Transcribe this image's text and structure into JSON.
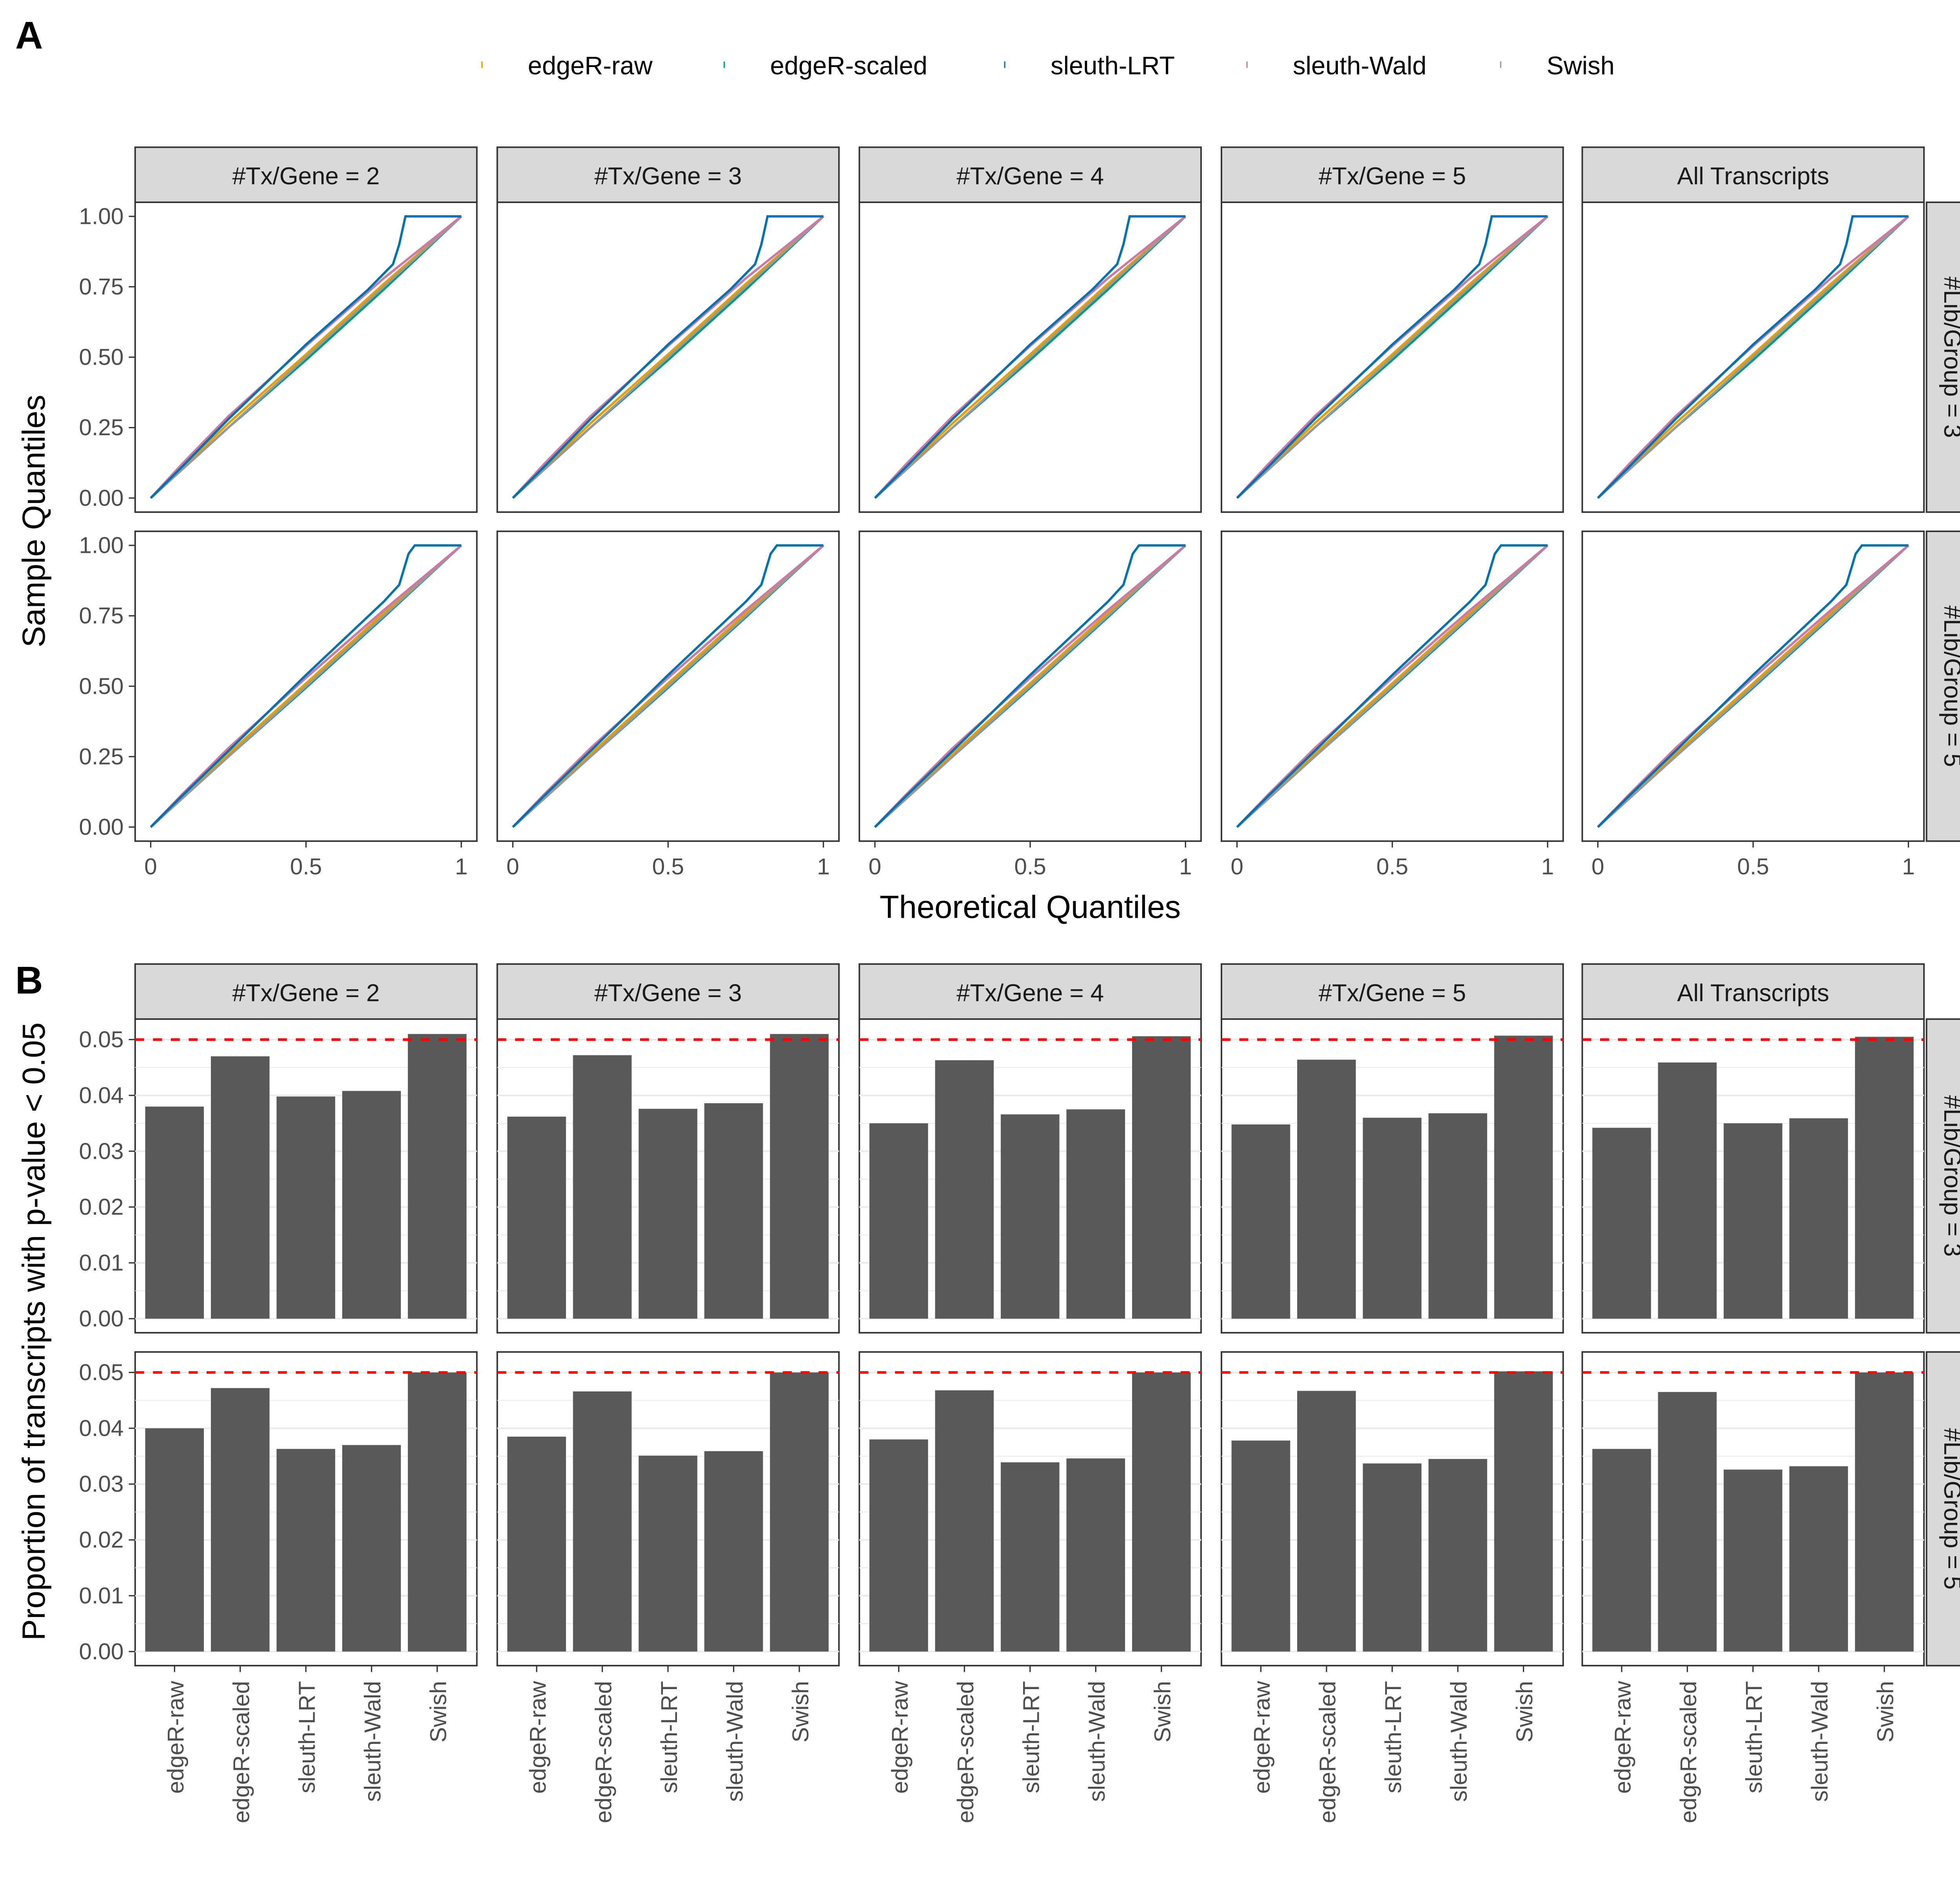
{
  "panel_labels": {
    "a": "A",
    "b": "B"
  },
  "legend": {
    "placement": "top",
    "entries": [
      {
        "name": "edgeR-raw",
        "color": "#E69F00"
      },
      {
        "name": "edgeR-scaled",
        "color": "#009E73"
      },
      {
        "name": "sleuth-LRT",
        "color": "#0072B2"
      },
      {
        "name": "sleuth-Wald",
        "color": "#CC79A7"
      },
      {
        "name": "Swish",
        "color": "#999999"
      }
    ]
  },
  "chart_data": [
    {
      "type": "line",
      "title": "",
      "xlabel": "Theoretical Quantiles",
      "ylabel": "Sample Quantiles",
      "xlim": [
        0,
        1
      ],
      "ylim": [
        0,
        1
      ],
      "xticks": [
        "0",
        "0.5",
        "1"
      ],
      "yticks": [
        "0.00",
        "0.25",
        "0.50",
        "0.75",
        "1.00"
      ],
      "grid": false,
      "col_facets": [
        "#Tx/Gene = 2",
        "#Tx/Gene = 3",
        "#Tx/Gene = 4",
        "#Tx/Gene = 5",
        "All Transcripts"
      ],
      "row_facets": [
        "#Lib/Group = 3",
        "#Lib/Group = 5"
      ],
      "rows": [
        {
          "series": [
            {
              "name": "edgeR-raw",
              "points": [
                [
                  0,
                  0
                ],
                [
                  0.25,
                  0.265
                ],
                [
                  0.5,
                  0.51
                ],
                [
                  0.75,
                  0.76
                ],
                [
                  1,
                  1
                ]
              ]
            },
            {
              "name": "edgeR-scaled",
              "points": [
                [
                  0,
                  0
                ],
                [
                  0.25,
                  0.25
                ],
                [
                  0.5,
                  0.49
                ],
                [
                  0.75,
                  0.74
                ],
                [
                  1,
                  1
                ]
              ]
            },
            {
              "name": "Swish",
              "points": [
                [
                  0,
                  0
                ],
                [
                  0.25,
                  0.25
                ],
                [
                  0.5,
                  0.5
                ],
                [
                  0.75,
                  0.75
                ],
                [
                  1,
                  1
                ]
              ]
            },
            {
              "name": "sleuth-Wald",
              "points": [
                [
                  0,
                  0
                ],
                [
                  0.1,
                  0.12
                ],
                [
                  0.25,
                  0.29
                ],
                [
                  0.5,
                  0.54
                ],
                [
                  0.75,
                  0.78
                ],
                [
                  1,
                  1
                ]
              ]
            },
            {
              "name": "sleuth-LRT",
              "points": [
                [
                  0,
                  0
                ],
                [
                  0.1,
                  0.11
                ],
                [
                  0.25,
                  0.28
                ],
                [
                  0.5,
                  0.545
                ],
                [
                  0.7,
                  0.74
                ],
                [
                  0.78,
                  0.83
                ],
                [
                  0.8,
                  0.9
                ],
                [
                  0.82,
                  1.0
                ],
                [
                  1,
                  1
                ]
              ]
            }
          ]
        },
        {
          "series": [
            {
              "name": "edgeR-raw",
              "points": [
                [
                  0,
                  0
                ],
                [
                  0.25,
                  0.26
                ],
                [
                  0.5,
                  0.51
                ],
                [
                  0.75,
                  0.76
                ],
                [
                  1,
                  1
                ]
              ]
            },
            {
              "name": "edgeR-scaled",
              "points": [
                [
                  0,
                  0
                ],
                [
                  0.25,
                  0.25
                ],
                [
                  0.5,
                  0.495
                ],
                [
                  0.75,
                  0.745
                ],
                [
                  1,
                  1
                ]
              ]
            },
            {
              "name": "Swish",
              "points": [
                [
                  0,
                  0
                ],
                [
                  0.25,
                  0.25
                ],
                [
                  0.5,
                  0.5
                ],
                [
                  0.75,
                  0.75
                ],
                [
                  1,
                  1
                ]
              ]
            },
            {
              "name": "sleuth-Wald",
              "points": [
                [
                  0,
                  0
                ],
                [
                  0.1,
                  0.115
                ],
                [
                  0.25,
                  0.28
                ],
                [
                  0.5,
                  0.53
                ],
                [
                  0.75,
                  0.77
                ],
                [
                  1,
                  1
                ]
              ]
            },
            {
              "name": "sleuth-LRT",
              "points": [
                [
                  0,
                  0
                ],
                [
                  0.1,
                  0.11
                ],
                [
                  0.25,
                  0.27
                ],
                [
                  0.5,
                  0.54
                ],
                [
                  0.75,
                  0.8
                ],
                [
                  0.8,
                  0.86
                ],
                [
                  0.83,
                  0.97
                ],
                [
                  0.85,
                  1
                ],
                [
                  1,
                  1
                ]
              ]
            }
          ]
        }
      ]
    },
    {
      "type": "bar",
      "title": "",
      "xlabel": "",
      "ylabel": "Proportion of transcripts with p-value < 0.05",
      "ylim": [
        0,
        0.05
      ],
      "yticks": [
        "0.00",
        "0.01",
        "0.02",
        "0.03",
        "0.04",
        "0.05"
      ],
      "grid": true,
      "reference_line": {
        "y": 0.05,
        "color": "#FF0000",
        "style": "dashed"
      },
      "bar_color": "#595959",
      "categories": [
        "edgeR-raw",
        "edgeR-scaled",
        "sleuth-LRT",
        "sleuth-Wald",
        "Swish"
      ],
      "col_facets": [
        "#Tx/Gene = 2",
        "#Tx/Gene = 3",
        "#Tx/Gene = 4",
        "#Tx/Gene = 5",
        "All Transcripts"
      ],
      "row_facets": [
        "#Lib/Group = 3",
        "#Lib/Group = 5"
      ],
      "values": [
        [
          [
            0.038,
            0.047,
            0.0398,
            0.0408,
            0.051
          ],
          [
            0.0362,
            0.0472,
            0.0376,
            0.0386,
            0.051
          ],
          [
            0.035,
            0.0463,
            0.0366,
            0.0375,
            0.0506
          ],
          [
            0.0348,
            0.0464,
            0.036,
            0.0368,
            0.0507
          ],
          [
            0.0342,
            0.0459,
            0.035,
            0.0359,
            0.0505
          ]
        ],
        [
          [
            0.04,
            0.0472,
            0.0363,
            0.037,
            0.05
          ],
          [
            0.0385,
            0.0466,
            0.0351,
            0.0359,
            0.05
          ],
          [
            0.038,
            0.0468,
            0.0339,
            0.0346,
            0.05
          ],
          [
            0.0378,
            0.0467,
            0.0337,
            0.0345,
            0.0502
          ],
          [
            0.0363,
            0.0465,
            0.0326,
            0.0332,
            0.05
          ]
        ]
      ]
    }
  ]
}
